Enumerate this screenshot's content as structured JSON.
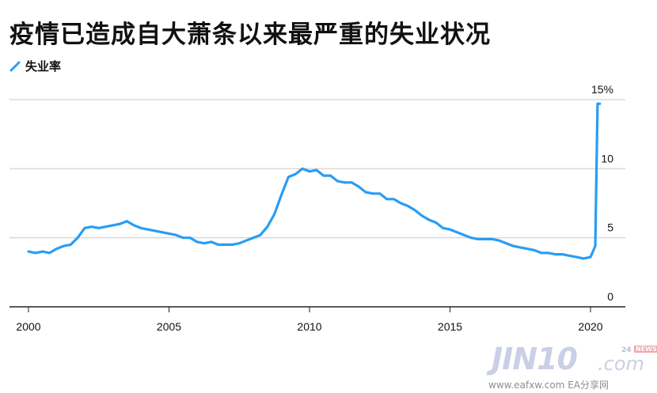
{
  "title": "疫情已造成自大萧条以来最严重的失业状况",
  "legend": {
    "label": "失业率"
  },
  "colors": {
    "line": "#2a9df4",
    "grid": "#d9d9d9",
    "axis": "#222222",
    "text": "#111111"
  },
  "chart_data": {
    "type": "line",
    "title": "疫情已造成自大萧条以来最严重的失业状况",
    "xlabel": "",
    "ylabel": "",
    "xlim": [
      2000,
      2021
    ],
    "ylim": [
      0,
      15
    ],
    "x_ticks": [
      2000,
      2005,
      2010,
      2015,
      2020
    ],
    "x_tick_labels": [
      "2000",
      "2005",
      "2010",
      "2015",
      "2020"
    ],
    "y_ticks": [
      0,
      5,
      10,
      15
    ],
    "y_tick_labels": [
      "0",
      "5",
      "10",
      "15%"
    ],
    "grid": true,
    "legend_position": "top-left",
    "series": [
      {
        "name": "失业率",
        "x": [
          2000.0,
          2000.25,
          2000.5,
          2000.75,
          2001.0,
          2001.25,
          2001.5,
          2001.75,
          2002.0,
          2002.25,
          2002.5,
          2002.75,
          2003.0,
          2003.25,
          2003.5,
          2003.75,
          2004.0,
          2004.25,
          2004.5,
          2004.75,
          2005.0,
          2005.25,
          2005.5,
          2005.75,
          2006.0,
          2006.25,
          2006.5,
          2006.75,
          2007.0,
          2007.25,
          2007.5,
          2007.75,
          2008.0,
          2008.25,
          2008.5,
          2008.75,
          2009.0,
          2009.25,
          2009.5,
          2009.75,
          2010.0,
          2010.25,
          2010.5,
          2010.75,
          2011.0,
          2011.25,
          2011.5,
          2011.75,
          2012.0,
          2012.25,
          2012.5,
          2012.75,
          2013.0,
          2013.25,
          2013.5,
          2013.75,
          2014.0,
          2014.25,
          2014.5,
          2014.75,
          2015.0,
          2015.25,
          2015.5,
          2015.75,
          2016.0,
          2016.25,
          2016.5,
          2016.75,
          2017.0,
          2017.25,
          2017.5,
          2017.75,
          2018.0,
          2018.25,
          2018.5,
          2018.75,
          2019.0,
          2019.25,
          2019.5,
          2019.75,
          2020.0,
          2020.17,
          2020.25,
          2020.33
        ],
        "values": [
          4.0,
          3.9,
          4.0,
          3.9,
          4.2,
          4.4,
          4.5,
          5.0,
          5.7,
          5.8,
          5.7,
          5.8,
          5.9,
          6.0,
          6.2,
          5.9,
          5.7,
          5.6,
          5.5,
          5.4,
          5.3,
          5.2,
          5.0,
          5.0,
          4.7,
          4.6,
          4.7,
          4.5,
          4.5,
          4.5,
          4.6,
          4.8,
          5.0,
          5.2,
          5.8,
          6.7,
          8.1,
          9.4,
          9.6,
          10.0,
          9.8,
          9.9,
          9.5,
          9.5,
          9.1,
          9.0,
          9.0,
          8.7,
          8.3,
          8.2,
          8.2,
          7.8,
          7.8,
          7.5,
          7.3,
          7.0,
          6.6,
          6.3,
          6.1,
          5.7,
          5.6,
          5.4,
          5.2,
          5.0,
          4.9,
          4.9,
          4.9,
          4.8,
          4.6,
          4.4,
          4.3,
          4.2,
          4.1,
          3.9,
          3.9,
          3.8,
          3.8,
          3.7,
          3.6,
          3.5,
          3.6,
          4.4,
          14.7,
          14.7
        ]
      }
    ]
  },
  "watermark": {
    "logo": "JIN10",
    "domain": ".com",
    "badge_number": "24",
    "badge_text": "NEWS",
    "subtext": "www.eafxw.com EA分享网"
  }
}
